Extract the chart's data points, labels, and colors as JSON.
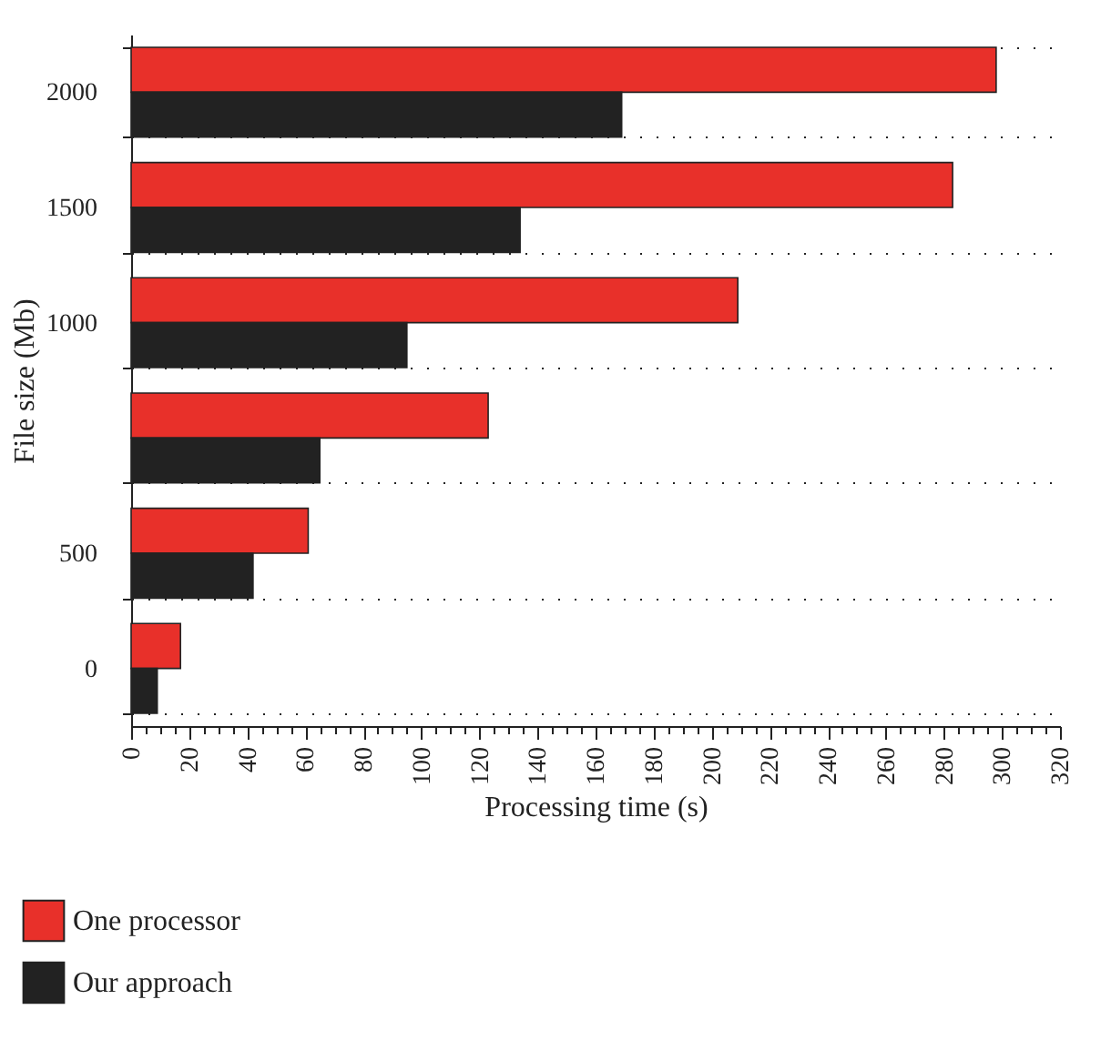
{
  "chart_data": {
    "type": "bar",
    "orientation": "horizontal",
    "xlabel": "Processing time (s)",
    "ylabel": "File size (Mb)",
    "categories": [
      "2000",
      "1500",
      "1000",
      null,
      "500",
      "0"
    ],
    "series": [
      {
        "name": "One processor",
        "color": "#e8302a",
        "values": [
          298,
          283,
          209,
          123,
          61,
          17
        ]
      },
      {
        "name": "Our approach",
        "color": "#222222",
        "values": [
          169,
          134,
          95,
          65,
          42,
          9
        ]
      }
    ],
    "xlim": [
      0,
      320
    ],
    "xticks": [
      0,
      {
        "value": 5,
        "label": null
      },
      {
        "value": 10,
        "label": null
      },
      {
        "value": 15,
        "label": null
      },
      20,
      {
        "value": 25,
        "label": null
      },
      {
        "value": 30,
        "label": null
      },
      {
        "value": 35,
        "label": null
      },
      40,
      {
        "value": 45,
        "label": null
      },
      {
        "value": 50,
        "label": null
      },
      {
        "value": 55,
        "label": null
      },
      60,
      {
        "value": 65,
        "label": null
      },
      {
        "value": 70,
        "label": null
      },
      {
        "value": 75,
        "label": null
      },
      80,
      {
        "value": 85,
        "label": null
      },
      {
        "value": 90,
        "label": null
      },
      {
        "value": 95,
        "label": null
      },
      100,
      {
        "value": 105,
        "label": null
      },
      {
        "value": 110,
        "label": null
      },
      {
        "value": 115,
        "label": null
      },
      120,
      {
        "value": 125,
        "label": null
      },
      {
        "value": 130,
        "label": null
      },
      {
        "value": 135,
        "label": null
      },
      140,
      {
        "value": 145,
        "label": null
      },
      {
        "value": 150,
        "label": null
      },
      {
        "value": 155,
        "label": null
      },
      160,
      {
        "value": 165,
        "label": null
      },
      {
        "value": 170,
        "label": null
      },
      {
        "value": 175,
        "label": null
      },
      180,
      {
        "value": 185,
        "label": null
      },
      {
        "value": 190,
        "label": null
      },
      {
        "value": 195,
        "label": null
      },
      200,
      {
        "value": 205,
        "label": null
      },
      {
        "value": 210,
        "label": null
      },
      {
        "value": 215,
        "label": null
      },
      220,
      {
        "value": 225,
        "label": null
      },
      {
        "value": 230,
        "label": null
      },
      {
        "value": 235,
        "label": null
      },
      240,
      {
        "value": 245,
        "label": null
      },
      {
        "value": 250,
        "label": null
      },
      {
        "value": 255,
        "label": null
      },
      260,
      {
        "value": 265,
        "label": null
      },
      {
        "value": 270,
        "label": null
      },
      {
        "value": 275,
        "label": null
      },
      280,
      {
        "value": 285,
        "label": null
      },
      {
        "value": 290,
        "label": null
      },
      {
        "value": 295,
        "label": null
      },
      300,
      {
        "value": 305,
        "label": null
      },
      {
        "value": 310,
        "label": null
      },
      {
        "value": 315,
        "label": null
      },
      320
    ],
    "grid": "y",
    "legend": "bottom left"
  }
}
